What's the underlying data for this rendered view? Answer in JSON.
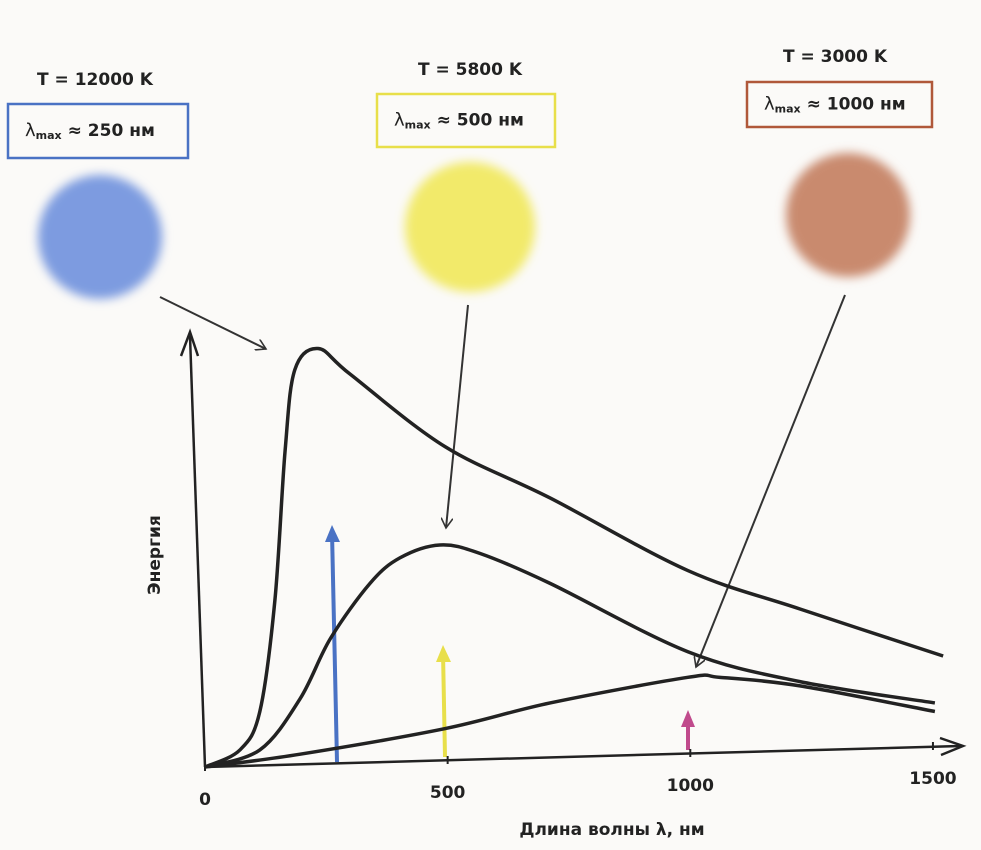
{
  "chart_data": {
    "type": "line",
    "x_label": "Длина волны λ, нм",
    "y_label": "Энергия",
    "xlim": [
      0,
      1560
    ],
    "xticks": [
      0,
      500,
      1000,
      1500
    ],
    "ylim": [
      0,
      100
    ],
    "series": [
      {
        "name": "T = 12000 K",
        "lambda": "λ",
        "sub": "max",
        "peak": "≈ 250 нм",
        "color": "#4a72c4",
        "star_color": "#7d9be0",
        "x": [
          0,
          72,
          113,
          144,
          165,
          185,
          233,
          299,
          495,
          711,
          995,
          1226,
          1521
        ],
        "values": [
          0,
          4,
          13,
          39,
          74,
          93,
          98,
          92,
          75,
          63,
          46,
          37,
          26
        ]
      },
      {
        "name": "T = 5800 K",
        "lambda": "λ",
        "sub": "max",
        "peak": "≈ 500 нм",
        "color": "#e8df4a",
        "star_color": "#f2ea6a",
        "x": [
          0,
          113,
          196,
          258,
          340,
          402,
          484,
          567,
          711,
          995,
          1226,
          1504
        ],
        "values": [
          0,
          4,
          16,
          30,
          43,
          49,
          52,
          50,
          43,
          27,
          20,
          15
        ]
      },
      {
        "name": "T = 3000 K",
        "lambda": "λ",
        "sub": "max",
        "peak": "≈ 1000 нм",
        "color": "#b0583a",
        "star_color": "#c98a6e",
        "x": [
          0,
          196,
          495,
          711,
          995,
          1061,
          1226,
          1504
        ],
        "values": [
          0,
          3,
          9,
          15,
          21,
          21,
          19,
          13
        ]
      }
    ]
  }
}
